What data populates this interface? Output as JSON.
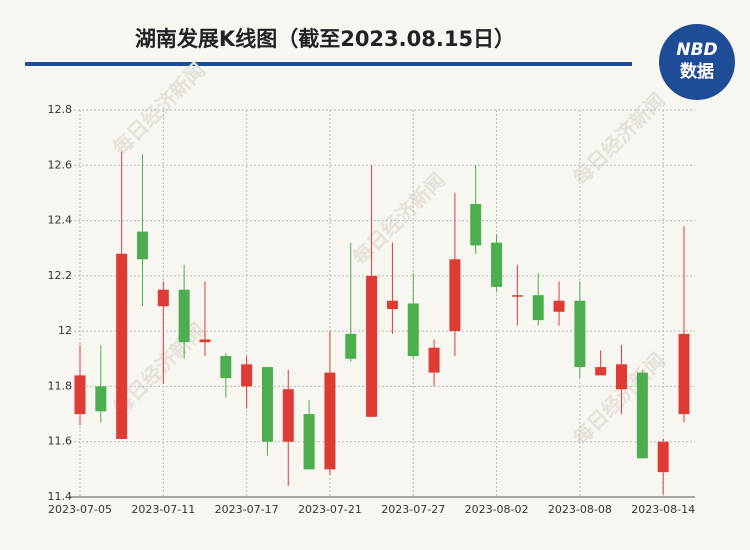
{
  "chart_data": {
    "type": "candlestick",
    "title": "湖南发展K线图（截至2023.08.15日）",
    "logo": {
      "top": "NBD",
      "bottom": "数据"
    },
    "watermark": "每日经济新闻",
    "categories": [
      "2023-07-05",
      null,
      null,
      null,
      "2023-07-11",
      null,
      null,
      null,
      "2023-07-17",
      null,
      null,
      null,
      "2023-07-21",
      null,
      null,
      null,
      "2023-07-27",
      null,
      null,
      null,
      "2023-08-02",
      null,
      null,
      null,
      "2023-08-08",
      null,
      null,
      null,
      "2023-08-14",
      null
    ],
    "open": [
      11.7,
      11.8,
      11.61,
      12.36,
      12.09,
      12.15,
      11.96,
      11.91,
      11.8,
      11.87,
      11.6,
      11.7,
      11.5,
      11.99,
      11.69,
      12.08,
      12.1,
      11.85,
      12.0,
      12.46,
      12.32,
      12.13,
      12.13,
      12.07,
      12.11,
      11.84,
      11.79,
      11.85,
      11.49,
      11.7
    ],
    "high": [
      11.95,
      11.95,
      12.65,
      12.64,
      12.18,
      12.24,
      12.18,
      11.92,
      11.91,
      11.87,
      11.86,
      11.75,
      12.0,
      12.32,
      12.6,
      12.32,
      12.21,
      11.97,
      12.5,
      12.6,
      12.35,
      12.24,
      12.21,
      12.18,
      12.18,
      11.93,
      11.95,
      11.86,
      11.61,
      12.38
    ],
    "low": [
      11.66,
      11.67,
      11.61,
      12.09,
      11.81,
      11.9,
      11.91,
      11.76,
      11.72,
      11.55,
      11.44,
      11.5,
      11.48,
      11.89,
      11.69,
      11.99,
      11.9,
      11.8,
      11.91,
      12.28,
      12.14,
      12.02,
      12.02,
      12.02,
      11.83,
      11.84,
      11.7,
      11.54,
      11.41,
      11.67
    ],
    "close": [
      11.84,
      11.71,
      12.28,
      12.26,
      12.15,
      11.96,
      11.97,
      11.83,
      11.88,
      11.6,
      11.79,
      11.5,
      11.85,
      11.9,
      12.2,
      12.11,
      11.91,
      11.94,
      12.26,
      12.31,
      12.16,
      12.13,
      12.04,
      12.11,
      11.87,
      11.87,
      11.88,
      11.54,
      11.6,
      11.99
    ],
    "up_color": "#df3b35",
    "down_color": "#4cae4f",
    "ylim": [
      11.4,
      12.8
    ],
    "yticks": [
      11.4,
      11.6,
      11.8,
      12,
      12.2,
      12.4,
      12.6,
      12.8
    ],
    "grid": true
  }
}
